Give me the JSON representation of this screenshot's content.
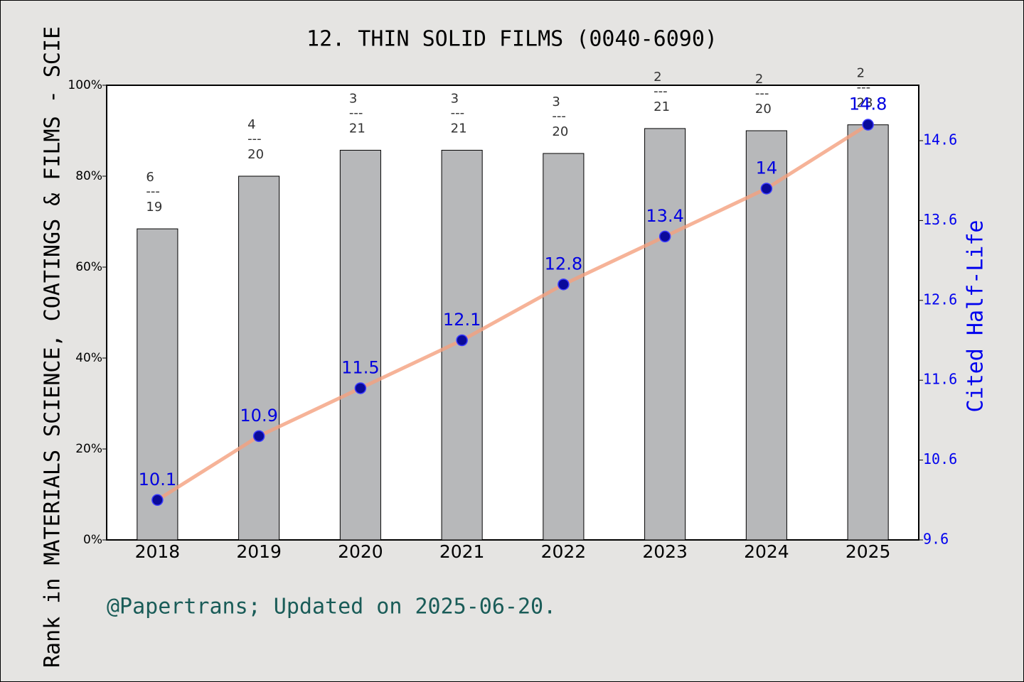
{
  "chart_data": {
    "type": "bar_line",
    "title": "12. THIN SOLID FILMS (0040-6090)",
    "y_label": "Rank in MATERIALS SCIENCE, COATINGS & FILMS - SCIE",
    "y2_label": "Cited Half-Life",
    "footer": "@Papertrans; Updated on 2025-06-20.",
    "categories": [
      "2018",
      "2019",
      "2020",
      "2021",
      "2022",
      "2023",
      "2024",
      "2025"
    ],
    "bars": {
      "values": [
        68.42,
        80,
        85.71,
        85.71,
        85,
        90.48,
        90,
        91.3
      ],
      "color": "#b7b8ba",
      "ranks": [
        6,
        4,
        3,
        3,
        3,
        2,
        2,
        2
      ],
      "totals": [
        19,
        20,
        21,
        21,
        20,
        21,
        20,
        23
      ],
      "separator": "---"
    },
    "line": {
      "values": [
        10.1,
        10.9,
        11.5,
        12.1,
        12.8,
        13.4,
        14,
        14.8
      ],
      "axis": "y2",
      "color": "#f4a07e",
      "marker_color": "#0a0a9a",
      "label_color": "#0000e0"
    },
    "ylim": [
      0,
      100
    ],
    "yticks": [
      {
        "value": 0,
        "label": "0%"
      },
      {
        "value": 20,
        "label": "20%"
      },
      {
        "value": 40,
        "label": "40%"
      },
      {
        "value": 60,
        "label": "60%"
      },
      {
        "value": 80,
        "label": "80%"
      },
      {
        "value": 100,
        "label": "100%"
      }
    ],
    "y2lim": [
      9.6,
      15.294
    ],
    "y2ticks": [
      9.6,
      10.6,
      11.6,
      12.6,
      13.6,
      14.6
    ]
  }
}
